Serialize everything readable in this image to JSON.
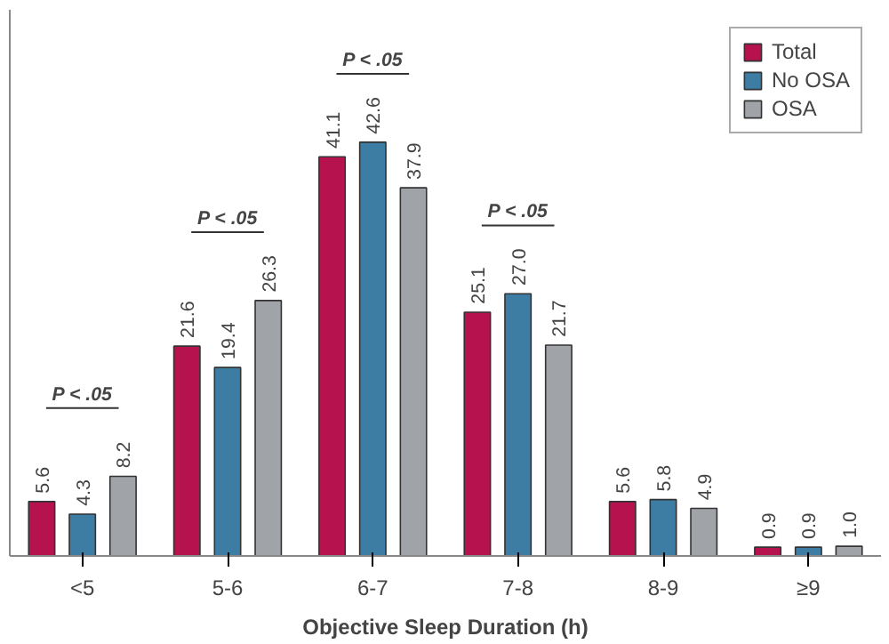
{
  "chart_data": {
    "type": "bar",
    "xlabel": "Objective Sleep Duration (h)",
    "categories": [
      "<5",
      "5-6",
      "6-7",
      "7-8",
      "8-9",
      "≥9"
    ],
    "series": [
      {
        "name": "Total",
        "color": "#b5124e",
        "values": [
          5.6,
          21.6,
          41.1,
          25.1,
          5.6,
          0.9
        ],
        "value_labels": [
          "5.6",
          "21.6",
          "41.1",
          "25.1",
          "5.6",
          "0.9"
        ]
      },
      {
        "name": "No OSA",
        "color": "#3d7ca3",
        "values": [
          4.3,
          19.4,
          42.6,
          27.0,
          5.8,
          0.9
        ],
        "value_labels": [
          "4.3",
          "19.4",
          "42.6",
          "27.0",
          "5.8",
          "0.9"
        ]
      },
      {
        "name": "OSA",
        "color": "#a0a4a8",
        "values": [
          8.2,
          26.3,
          37.9,
          21.7,
          4.9,
          1.0
        ],
        "value_labels": [
          "8.2",
          "26.3",
          "37.9",
          "21.7",
          "4.9",
          "1.0"
        ]
      }
    ],
    "legend": "top right",
    "grid": false,
    "tick_labels": "x",
    "annotations": [
      "P < .05",
      "P < .05",
      "P < .05",
      "P < .05"
    ]
  }
}
